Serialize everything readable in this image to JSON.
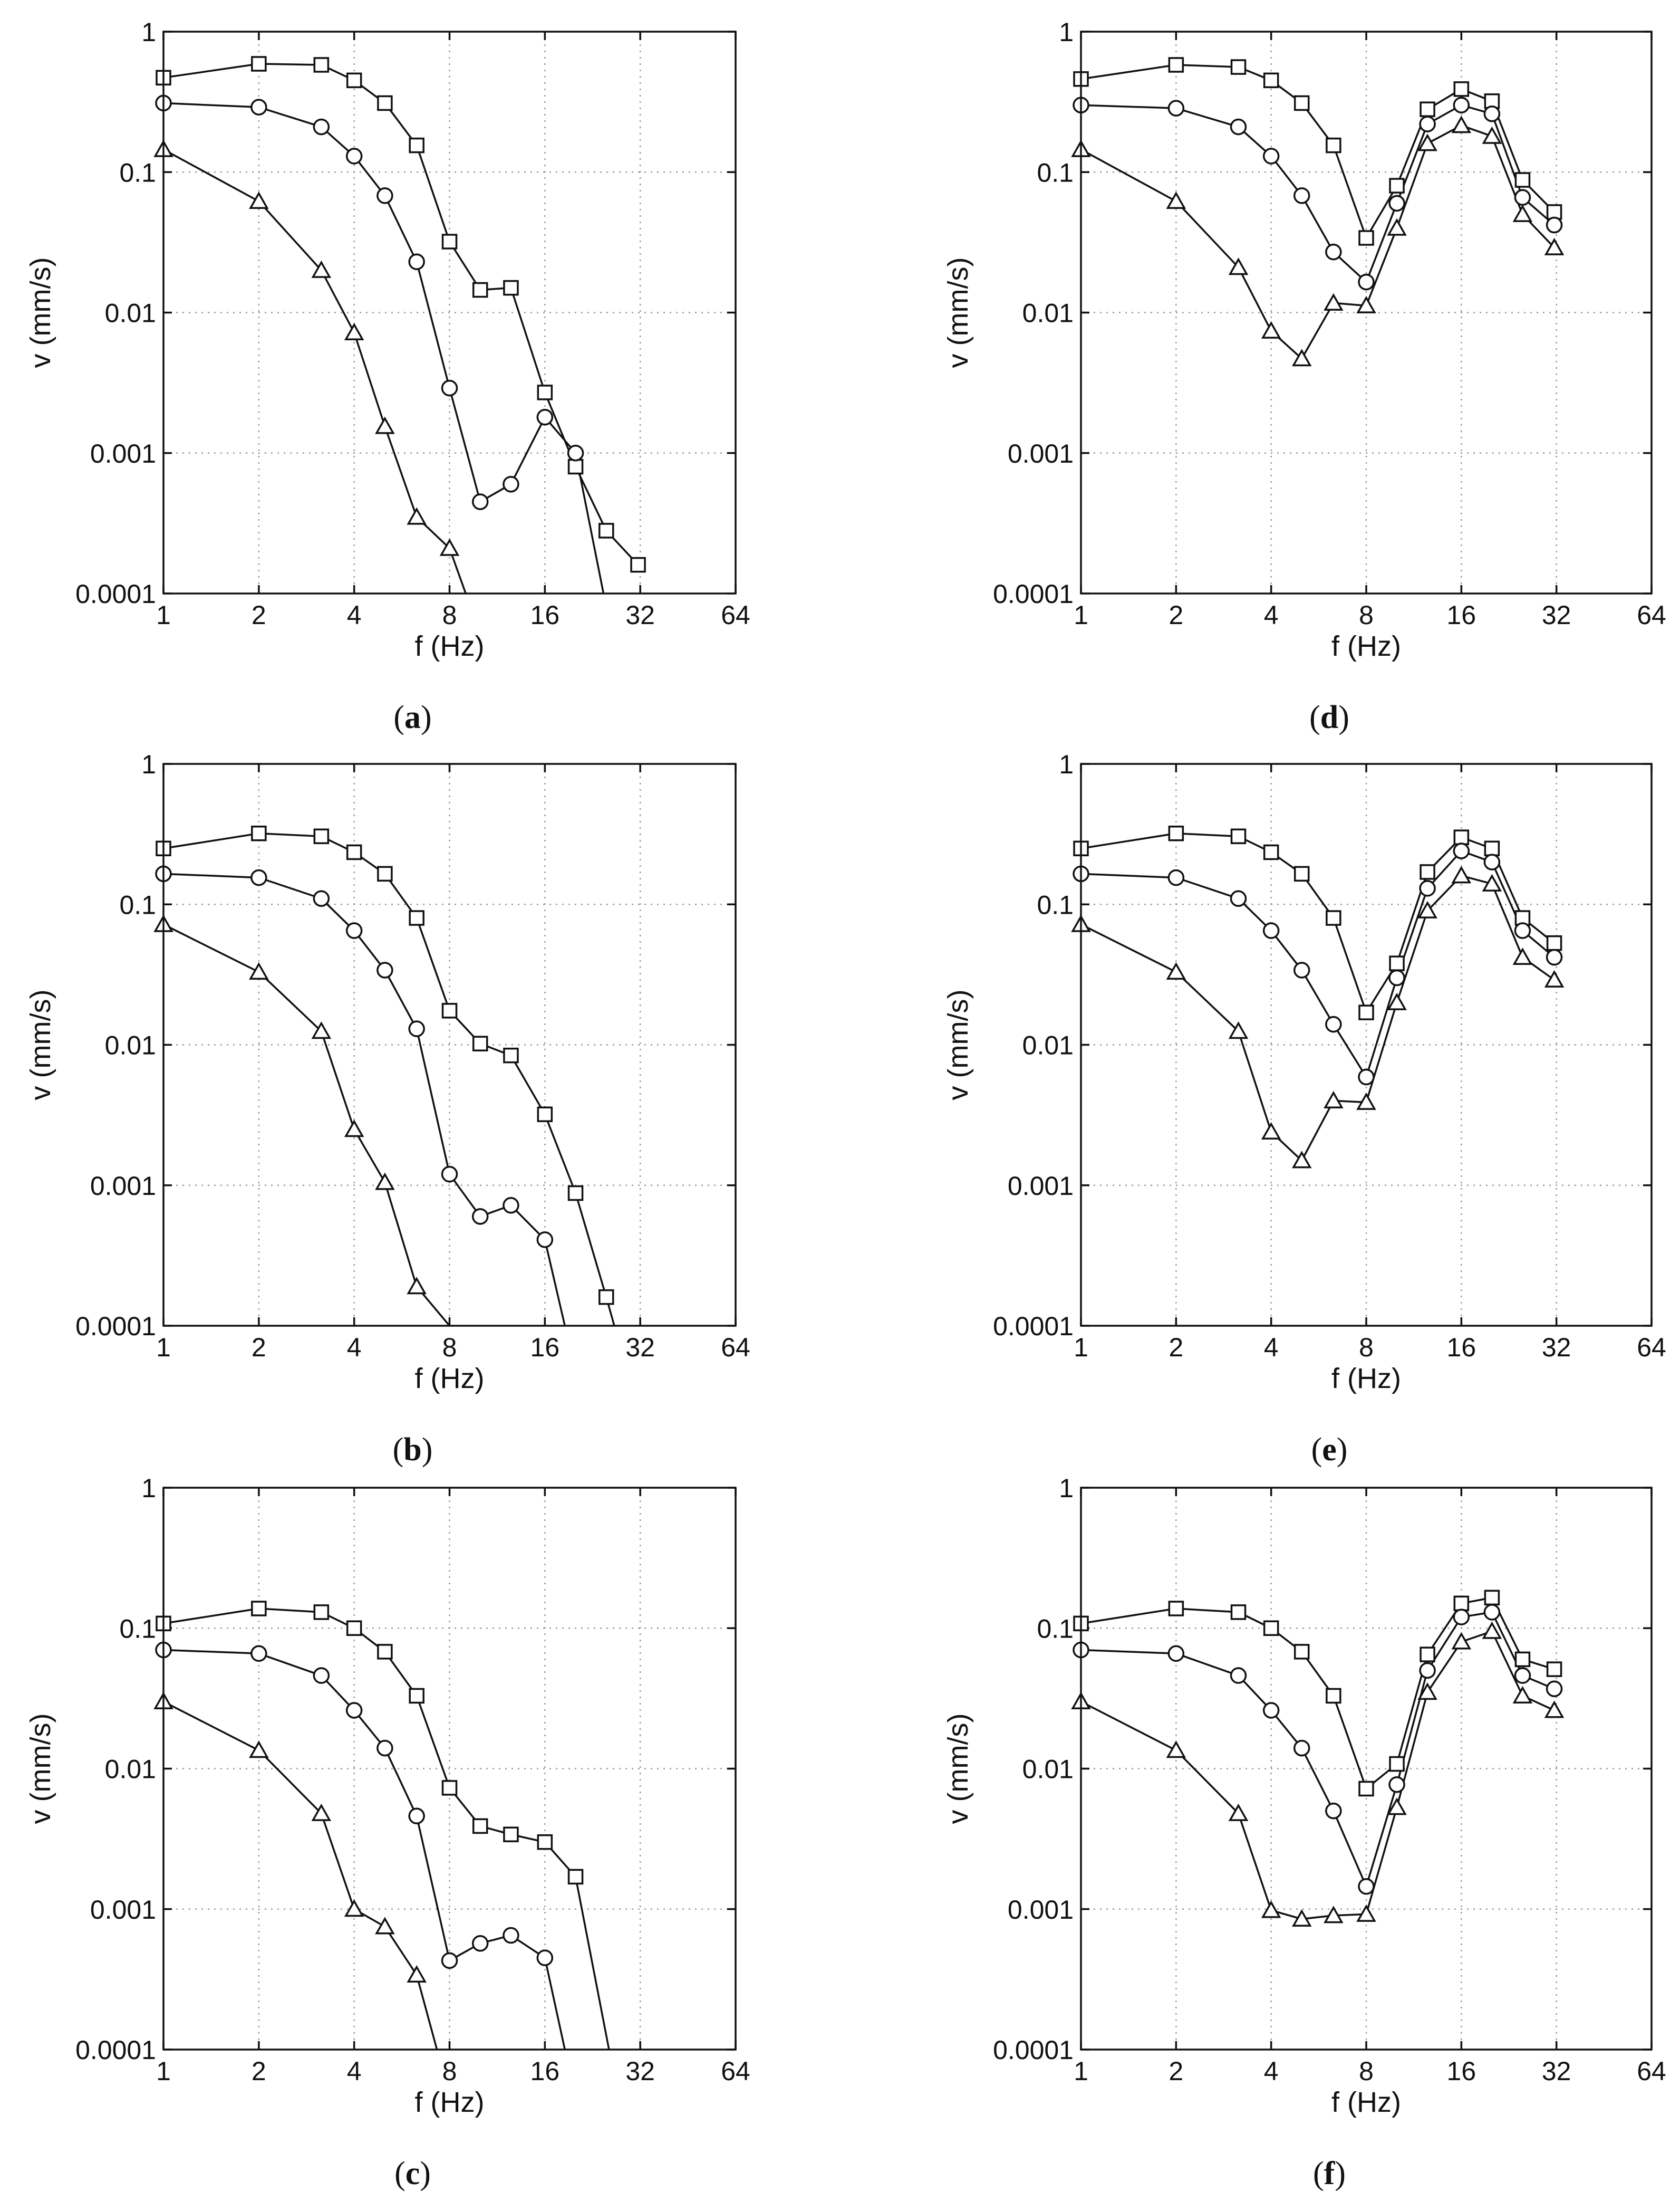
{
  "figure": {
    "marker_legend": [
      "square",
      "circle",
      "triangle"
    ]
  },
  "chart_data": [
    {
      "id": "a",
      "caption": "a",
      "type": "line",
      "xlabel": "f (Hz)",
      "ylabel": "v (mm/s)",
      "xscale": "log2",
      "yscale": "log10",
      "xlim": [
        1,
        64
      ],
      "ylim": [
        0.0001,
        1
      ],
      "xticks": [
        1,
        2,
        4,
        8,
        16,
        32,
        64
      ],
      "xtick_labels": [
        "1",
        "2",
        "4",
        "8",
        "16",
        "32",
        "64"
      ],
      "yticks": [
        0.0001,
        0.001,
        0.01,
        0.1,
        1
      ],
      "ytick_labels": [
        "0.0001",
        "0.001",
        "0.01",
        "0.1",
        "1"
      ],
      "grid": true,
      "series": [
        {
          "marker": "square",
          "x": [
            1,
            2,
            3.15,
            4,
            5,
            6.3,
            8,
            10,
            12.5,
            16,
            20,
            25,
            31.5
          ],
          "y": [
            0.47,
            0.59,
            0.58,
            0.45,
            0.31,
            0.155,
            0.032,
            0.0145,
            0.015,
            0.0027,
            0.0008,
            0.00028,
            0.00016
          ]
        },
        {
          "marker": "circle",
          "x": [
            1,
            2,
            3.15,
            4,
            5,
            6.3,
            8,
            10,
            12.5,
            16,
            20
          ],
          "y": [
            0.31,
            0.29,
            0.21,
            0.13,
            0.068,
            0.023,
            0.0029,
            0.00045,
            0.0006,
            0.0018,
            0.001
          ],
          "tail": {
            "x": 24.5,
            "y": 0.0001
          }
        },
        {
          "marker": "triangle",
          "x": [
            1,
            2,
            3.15,
            4,
            5,
            6.3,
            8
          ],
          "y": [
            0.145,
            0.062,
            0.02,
            0.0072,
            0.00155,
            0.00035,
            0.00021
          ],
          "tail": {
            "x": 9,
            "y": 0.0001
          }
        }
      ]
    },
    {
      "id": "b",
      "caption": "b",
      "type": "line",
      "xlabel": "f (Hz)",
      "ylabel": "v (mm/s)",
      "xscale": "log2",
      "yscale": "log10",
      "xlim": [
        1,
        64
      ],
      "ylim": [
        0.0001,
        1
      ],
      "xticks": [
        1,
        2,
        4,
        8,
        16,
        32,
        64
      ],
      "xtick_labels": [
        "1",
        "2",
        "4",
        "8",
        "16",
        "32",
        "64"
      ],
      "yticks": [
        0.0001,
        0.001,
        0.01,
        0.1,
        1
      ],
      "ytick_labels": [
        "0.0001",
        "0.001",
        "0.01",
        "0.1",
        "1"
      ],
      "grid": true,
      "series": [
        {
          "marker": "square",
          "x": [
            1,
            2,
            3.15,
            4,
            5,
            6.3,
            8,
            10,
            12.5,
            16,
            20,
            25
          ],
          "y": [
            0.25,
            0.32,
            0.305,
            0.235,
            0.165,
            0.08,
            0.0175,
            0.0102,
            0.0084,
            0.0032,
            0.00088,
            0.00016
          ],
          "tail": {
            "x": 26.5,
            "y": 0.0001
          }
        },
        {
          "marker": "circle",
          "x": [
            1,
            2,
            3.15,
            4,
            5,
            6.3,
            8,
            10,
            12.5,
            16
          ],
          "y": [
            0.165,
            0.155,
            0.11,
            0.065,
            0.034,
            0.013,
            0.0012,
            0.0006,
            0.00072,
            0.00041
          ],
          "tail": {
            "x": 18.5,
            "y": 0.0001
          }
        },
        {
          "marker": "triangle",
          "x": [
            1,
            2,
            3.15,
            4,
            5,
            6.3
          ],
          "y": [
            0.072,
            0.033,
            0.0125,
            0.0025,
            0.00105,
            0.00019
          ],
          "tail": {
            "x": 8,
            "y": 0.0001
          }
        }
      ]
    },
    {
      "id": "c",
      "caption": "c",
      "type": "line",
      "xlabel": "f (Hz)",
      "ylabel": "v (mm/s)",
      "xscale": "log2",
      "yscale": "log10",
      "xlim": [
        1,
        64
      ],
      "ylim": [
        0.0001,
        1
      ],
      "xticks": [
        1,
        2,
        4,
        8,
        16,
        32,
        64
      ],
      "xtick_labels": [
        "1",
        "2",
        "4",
        "8",
        "16",
        "32",
        "64"
      ],
      "yticks": [
        0.0001,
        0.001,
        0.01,
        0.1,
        1
      ],
      "ytick_labels": [
        "0.0001",
        "0.001",
        "0.01",
        "0.1",
        "1"
      ],
      "grid": true,
      "series": [
        {
          "marker": "square",
          "x": [
            1,
            2,
            3.15,
            4,
            5,
            6.3,
            8,
            10,
            12.5,
            16,
            20
          ],
          "y": [
            0.108,
            0.138,
            0.13,
            0.1,
            0.068,
            0.033,
            0.0073,
            0.0039,
            0.0034,
            0.003,
            0.0017
          ],
          "tail": {
            "x": 25.5,
            "y": 0.0001
          }
        },
        {
          "marker": "circle",
          "x": [
            1,
            2,
            3.15,
            4,
            5,
            6.3,
            8,
            10,
            12.5,
            16
          ],
          "y": [
            0.07,
            0.066,
            0.046,
            0.026,
            0.014,
            0.0046,
            0.00043,
            0.00057,
            0.00065,
            0.00045
          ],
          "tail": {
            "x": 18.5,
            "y": 0.0001
          }
        },
        {
          "marker": "triangle",
          "x": [
            1,
            2,
            3.15,
            4,
            5,
            6.3
          ],
          "y": [
            0.03,
            0.0135,
            0.0048,
            0.001,
            0.00075,
            0.00034
          ],
          "tail": {
            "x": 7.3,
            "y": 0.0001
          }
        }
      ]
    },
    {
      "id": "d",
      "caption": "d",
      "type": "line",
      "xlabel": "f (Hz)",
      "ylabel": "v (mm/s)",
      "xscale": "log2",
      "yscale": "log10",
      "xlim": [
        1,
        64
      ],
      "ylim": [
        0.0001,
        1
      ],
      "xticks": [
        1,
        2,
        4,
        8,
        16,
        32,
        64
      ],
      "xtick_labels": [
        "1",
        "2",
        "4",
        "8",
        "16",
        "32",
        "64"
      ],
      "yticks": [
        0.0001,
        0.001,
        0.01,
        0.1,
        1
      ],
      "ytick_labels": [
        "0.0001",
        "0.001",
        "0.01",
        "0.1",
        "1"
      ],
      "grid": true,
      "series": [
        {
          "marker": "square",
          "x": [
            1,
            2,
            3.15,
            4,
            5,
            6.3,
            8,
            10,
            12.5,
            16,
            20,
            25,
            31.5
          ],
          "y": [
            0.46,
            0.58,
            0.56,
            0.45,
            0.31,
            0.155,
            0.034,
            0.08,
            0.28,
            0.39,
            0.32,
            0.088,
            0.052
          ]
        },
        {
          "marker": "circle",
          "x": [
            1,
            2,
            3.15,
            4,
            5,
            6.3,
            8,
            10,
            12.5,
            16,
            20,
            25,
            31.5
          ],
          "y": [
            0.3,
            0.285,
            0.21,
            0.13,
            0.068,
            0.027,
            0.0165,
            0.06,
            0.22,
            0.3,
            0.26,
            0.066,
            0.042
          ]
        },
        {
          "marker": "triangle",
          "x": [
            1,
            2,
            3.15,
            4,
            5,
            6.3,
            8,
            10,
            12.5,
            16,
            20,
            25,
            31.5
          ],
          "y": [
            0.145,
            0.062,
            0.021,
            0.0074,
            0.0047,
            0.0117,
            0.0112,
            0.04,
            0.16,
            0.215,
            0.18,
            0.05,
            0.029
          ]
        }
      ]
    },
    {
      "id": "e",
      "caption": "e",
      "type": "line",
      "xlabel": "f (Hz)",
      "ylabel": "v (mm/s)",
      "xscale": "log2",
      "yscale": "log10",
      "xlim": [
        1,
        64
      ],
      "ylim": [
        0.0001,
        1
      ],
      "xticks": [
        1,
        2,
        4,
        8,
        16,
        32,
        64
      ],
      "xtick_labels": [
        "1",
        "2",
        "4",
        "8",
        "16",
        "32",
        "64"
      ],
      "yticks": [
        0.0001,
        0.001,
        0.01,
        0.1,
        1
      ],
      "ytick_labels": [
        "0.0001",
        "0.001",
        "0.01",
        "0.1",
        "1"
      ],
      "grid": true,
      "series": [
        {
          "marker": "square",
          "x": [
            1,
            2,
            3.15,
            4,
            5,
            6.3,
            8,
            10,
            12.5,
            16,
            20,
            25,
            31.5
          ],
          "y": [
            0.25,
            0.32,
            0.305,
            0.235,
            0.165,
            0.08,
            0.017,
            0.038,
            0.17,
            0.3,
            0.25,
            0.08,
            0.053
          ]
        },
        {
          "marker": "circle",
          "x": [
            1,
            2,
            3.15,
            4,
            5,
            6.3,
            8,
            10,
            12.5,
            16,
            20,
            25,
            31.5
          ],
          "y": [
            0.165,
            0.155,
            0.11,
            0.065,
            0.034,
            0.014,
            0.0059,
            0.03,
            0.13,
            0.24,
            0.2,
            0.065,
            0.042
          ]
        },
        {
          "marker": "triangle",
          "x": [
            1,
            2,
            3.15,
            4,
            5,
            6.3,
            8,
            10,
            12.5,
            16,
            20,
            25,
            31.5
          ],
          "y": [
            0.072,
            0.033,
            0.0125,
            0.0024,
            0.0015,
            0.004,
            0.0039,
            0.02,
            0.09,
            0.16,
            0.14,
            0.042,
            0.029
          ]
        }
      ]
    },
    {
      "id": "f",
      "caption": "f",
      "type": "line",
      "xlabel": "f (Hz)",
      "ylabel": "v (mm/s)",
      "xscale": "log2",
      "yscale": "log10",
      "xlim": [
        1,
        64
      ],
      "ylim": [
        0.0001,
        1
      ],
      "xticks": [
        1,
        2,
        4,
        8,
        16,
        32,
        64
      ],
      "xtick_labels": [
        "1",
        "2",
        "4",
        "8",
        "16",
        "32",
        "64"
      ],
      "yticks": [
        0.0001,
        0.001,
        0.01,
        0.1,
        1
      ],
      "ytick_labels": [
        "0.0001",
        "0.001",
        "0.01",
        "0.1",
        "1"
      ],
      "grid": true,
      "series": [
        {
          "marker": "square",
          "x": [
            1,
            2,
            3.15,
            4,
            5,
            6.3,
            8,
            10,
            12.5,
            16,
            20,
            25,
            31.5
          ],
          "y": [
            0.108,
            0.138,
            0.13,
            0.1,
            0.068,
            0.033,
            0.0072,
            0.0108,
            0.065,
            0.15,
            0.165,
            0.06,
            0.051
          ]
        },
        {
          "marker": "circle",
          "x": [
            1,
            2,
            3.15,
            4,
            5,
            6.3,
            8,
            10,
            12.5,
            16,
            20,
            25,
            31.5
          ],
          "y": [
            0.07,
            0.066,
            0.046,
            0.026,
            0.014,
            0.005,
            0.00145,
            0.0077,
            0.05,
            0.12,
            0.13,
            0.046,
            0.037
          ]
        },
        {
          "marker": "triangle",
          "x": [
            1,
            2,
            3.15,
            4,
            5,
            6.3,
            8,
            10,
            12.5,
            16,
            20,
            25,
            31.5
          ],
          "y": [
            0.03,
            0.0135,
            0.0048,
            0.00098,
            0.00085,
            0.0009,
            0.00092,
            0.0053,
            0.035,
            0.08,
            0.095,
            0.033,
            0.026
          ]
        }
      ]
    }
  ]
}
